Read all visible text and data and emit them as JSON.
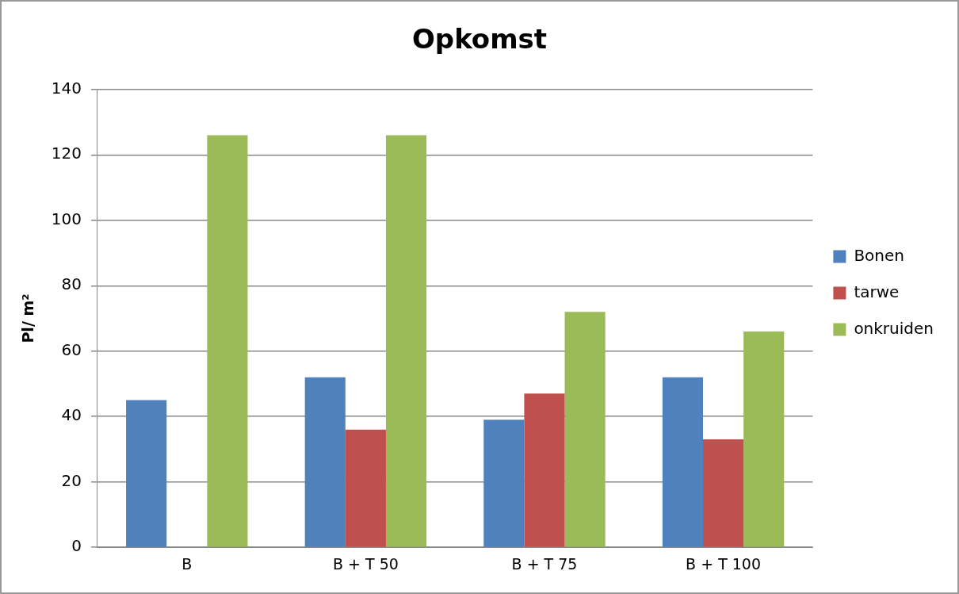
{
  "chart_data": {
    "type": "bar",
    "title": "Opkomst",
    "ylabel": "Pl/ m²",
    "categories": [
      "B",
      "B + T 50",
      "B + T 75",
      "B + T 100"
    ],
    "series": [
      {
        "name": "Bonen",
        "color": "#4f81bd",
        "values": [
          45,
          52,
          39,
          52
        ]
      },
      {
        "name": "tarwe",
        "color": "#c0504d",
        "values": [
          0,
          36,
          47,
          33
        ]
      },
      {
        "name": "onkruiden",
        "color": "#9bbb59",
        "values": [
          126,
          126,
          72,
          66
        ]
      }
    ],
    "ylim": [
      0,
      140
    ],
    "yticks": [
      0,
      20,
      40,
      60,
      80,
      100,
      120,
      140
    ],
    "grid": "y",
    "legend": "right"
  }
}
